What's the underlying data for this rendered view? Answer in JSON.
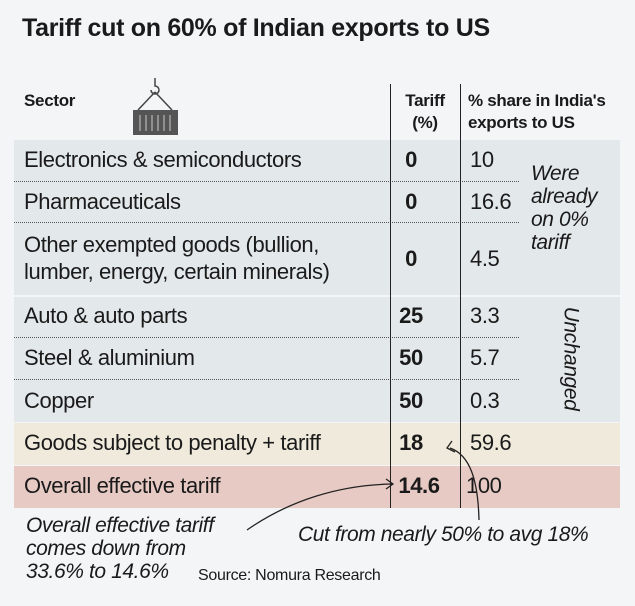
{
  "chart_data": {
    "type": "table",
    "title": "Tariff cut on 60% of Indian exports to US",
    "columns": [
      "Sector",
      "Tariff (%)",
      "% share in India's exports to US"
    ],
    "rows": [
      {
        "sector": "Electronics & semiconductors",
        "tariff": "0",
        "share": "10"
      },
      {
        "sector": "Pharmaceuticals",
        "tariff": "0",
        "share": "16.6"
      },
      {
        "sector_line1": "Other exempted goods (bullion,",
        "sector_line2": "lumber, energy, certain minerals)",
        "tariff": "0",
        "share": "4.5"
      },
      {
        "sector": "Auto & auto parts",
        "tariff": "25",
        "share": "3.3"
      },
      {
        "sector": "Steel & aluminium",
        "tariff": "50",
        "share": "5.7"
      },
      {
        "sector": "Copper",
        "tariff": "50",
        "share": "0.3"
      },
      {
        "sector": "Goods subject to penalty + tariff",
        "tariff": "18",
        "share": "59.6"
      },
      {
        "sector": "Overall effective tariff",
        "tariff": "14.6",
        "share": "100"
      }
    ],
    "header": {
      "sector": "Sector",
      "tariff_line1": "Tariff",
      "tariff_line2": "(%)",
      "share_line1": "% share in India's",
      "share_line2": "exports to US"
    },
    "annotations": {
      "already_zero": [
        "Were",
        "already",
        "on 0%",
        "tariff"
      ],
      "unchanged": "Unchanged",
      "overall_note": [
        "Overall effective tariff",
        "comes down from",
        "33.6% to 14.6%"
      ],
      "cut_note": "Cut from nearly 50% to avg 18%"
    },
    "source": "Source: Nomura Research",
    "icon": "shipping-container-icon",
    "colors": {
      "row_bg": "#e3e8ea",
      "penalty_row": "#efeadb",
      "overall_row": "#e8cac5",
      "page_bg": "#f4f5f7"
    }
  }
}
